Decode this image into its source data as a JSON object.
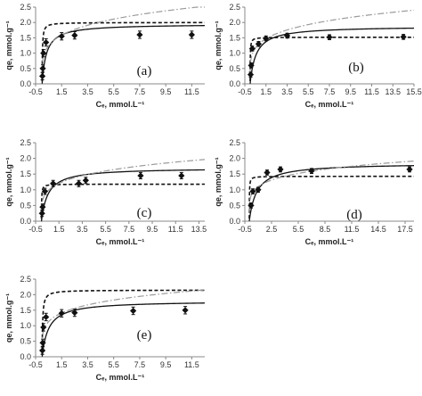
{
  "chart_data": [
    {
      "type": "scatter",
      "panel_label": "(a)",
      "ylabel": "qe, mmol.g⁻¹",
      "xlabel": "Cₑ, mmol.L⁻¹",
      "x_ticks": [
        "-0.5",
        "1.5",
        "3.5",
        "5.5",
        "7.5",
        "9.5",
        "11.5"
      ],
      "y_ticks": [
        "0.0",
        "0.5",
        "1.0",
        "1.5",
        "2.0",
        "2.5"
      ],
      "xlim": [
        -0.5,
        12.5
      ],
      "ylim": [
        0,
        2.5
      ],
      "grid": false,
      "points": [
        [
          0.02,
          0.25
        ],
        [
          0.05,
          0.5
        ],
        [
          0.1,
          1.0
        ],
        [
          0.3,
          1.35
        ],
        [
          1.5,
          1.55
        ],
        [
          2.5,
          1.58
        ],
        [
          7.5,
          1.6
        ],
        [
          11.5,
          1.6
        ]
      ],
      "error": 0.12,
      "curves": [
        {
          "style": "solid",
          "model": "langmuir",
          "qm": 1.95,
          "K": 3.0
        },
        {
          "style": "dashed",
          "model": "langmuir",
          "qm": 2.0,
          "K": 40
        },
        {
          "style": "dashdot",
          "model": "freundlich",
          "Kf": 1.45,
          "n": 0.22
        }
      ]
    },
    {
      "type": "scatter",
      "panel_label": "(b)",
      "ylabel": "qe, mmol.g⁻¹",
      "xlabel": "Cₑ, mmol.L⁻¹",
      "x_ticks": [
        "-0.5",
        "1.5",
        "3.5",
        "5.5",
        "7.5",
        "9.5",
        "11.5",
        "13.5",
        "15.5"
      ],
      "y_ticks": [
        "0.0",
        "0.5",
        "1.0",
        "1.5",
        "2.0",
        "2.5"
      ],
      "xlim": [
        -0.5,
        15.5
      ],
      "ylim": [
        0,
        2.5
      ],
      "grid": false,
      "points": [
        [
          0.05,
          0.3
        ],
        [
          0.1,
          0.6
        ],
        [
          0.2,
          1.15
        ],
        [
          0.8,
          1.3
        ],
        [
          1.5,
          1.48
        ],
        [
          3.5,
          1.57
        ],
        [
          7.5,
          1.52
        ],
        [
          14.5,
          1.53
        ]
      ],
      "error": 0.08,
      "curves": [
        {
          "style": "solid",
          "model": "langmuir",
          "qm": 1.88,
          "K": 1.8
        },
        {
          "style": "dashed",
          "model": "langmuir",
          "qm": 1.52,
          "K": 60
        },
        {
          "style": "dashdot",
          "model": "freundlich",
          "Kf": 1.35,
          "n": 0.21
        }
      ]
    },
    {
      "type": "scatter",
      "panel_label": "(c)",
      "ylabel": "qe, mmol.g⁻¹",
      "xlabel": "Cₑ, mmol.L⁻¹",
      "x_ticks": [
        "-0.5",
        "1.5",
        "3.5",
        "5.5",
        "7.5",
        "9.5",
        "11.5",
        "13.5"
      ],
      "y_ticks": [
        "0.0",
        "0.5",
        "1.0",
        "1.5",
        "2.0",
        "2.5"
      ],
      "xlim": [
        -0.5,
        14.0
      ],
      "ylim": [
        0,
        2.5
      ],
      "grid": false,
      "points": [
        [
          0.05,
          0.25
        ],
        [
          0.1,
          0.45
        ],
        [
          0.3,
          0.95
        ],
        [
          1.0,
          1.2
        ],
        [
          3.2,
          1.2
        ],
        [
          3.8,
          1.3
        ],
        [
          8.5,
          1.45
        ],
        [
          12.0,
          1.45
        ]
      ],
      "error": 0.1,
      "curves": [
        {
          "style": "solid",
          "model": "langmuir",
          "qm": 1.7,
          "K": 1.8
        },
        {
          "style": "dashed",
          "model": "langmuir",
          "qm": 1.18,
          "K": 60
        },
        {
          "style": "dashdot",
          "model": "freundlich",
          "Kf": 1.1,
          "n": 0.22
        }
      ]
    },
    {
      "type": "scatter",
      "panel_label": "(d)",
      "ylabel": "qe, mmol.g⁻¹",
      "xlabel": "Cₑ, mmol.L⁻¹",
      "x_ticks": [
        "-0.5",
        "2.5",
        "5.5",
        "8.5",
        "11.5",
        "14.5",
        "17.5"
      ],
      "y_ticks": [
        "0.0",
        "0.5",
        "1.0",
        "1.5",
        "2.0",
        "2.5"
      ],
      "xlim": [
        -0.5,
        18.5
      ],
      "ylim": [
        0,
        2.5
      ],
      "grid": false,
      "points": [
        [
          0.2,
          0.5
        ],
        [
          0.4,
          0.95
        ],
        [
          1.0,
          1.0
        ],
        [
          2.0,
          1.55
        ],
        [
          3.5,
          1.65
        ],
        [
          7.0,
          1.6
        ],
        [
          18.0,
          1.65
        ]
      ],
      "error": 0.08,
      "curves": [
        {
          "style": "solid",
          "model": "langmuir",
          "qm": 1.85,
          "K": 1.2
        },
        {
          "style": "dashed",
          "model": "langmuir",
          "qm": 1.43,
          "K": 60
        },
        {
          "style": "dashdot",
          "model": "freundlich",
          "Kf": 1.1,
          "n": 0.19
        }
      ]
    },
    {
      "type": "scatter",
      "panel_label": "(e)",
      "ylabel": "qe, mmol.g⁻¹",
      "xlabel": "Cₑ, mmol.L⁻¹",
      "x_ticks": [
        "-0.5",
        "1.5",
        "3.5",
        "5.5",
        "7.5",
        "9.5",
        "11.5"
      ],
      "y_ticks": [
        "0.0",
        "0.5",
        "1.0",
        "1.5",
        "2.0",
        "2.5"
      ],
      "xlim": [
        -0.5,
        12.5
      ],
      "ylim": [
        0,
        2.5
      ],
      "grid": false,
      "points": [
        [
          0.02,
          0.2
        ],
        [
          0.05,
          0.45
        ],
        [
          0.1,
          0.95
        ],
        [
          0.3,
          1.28
        ],
        [
          1.5,
          1.4
        ],
        [
          2.5,
          1.42
        ],
        [
          7.0,
          1.48
        ],
        [
          11.0,
          1.5
        ]
      ],
      "error": 0.12,
      "curves": [
        {
          "style": "solid",
          "model": "langmuir",
          "qm": 1.8,
          "K": 2.0
        },
        {
          "style": "dashed",
          "model": "langmuir",
          "qm": 2.15,
          "K": 25
        },
        {
          "style": "dashdot",
          "model": "freundlich",
          "Kf": 1.3,
          "n": 0.2
        }
      ]
    }
  ]
}
